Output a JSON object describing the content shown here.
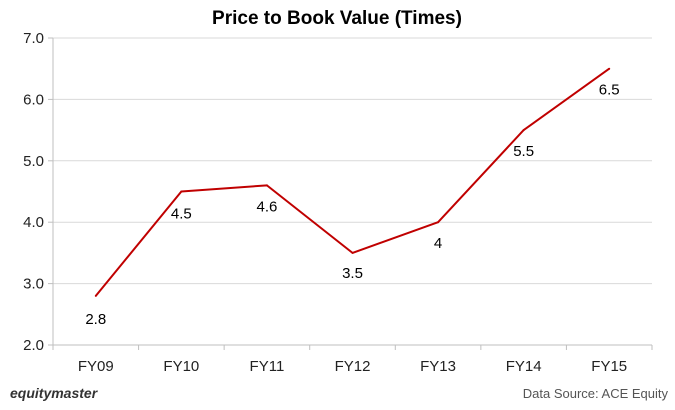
{
  "chart_data": {
    "type": "line",
    "title": "Price to Book Value (Times)",
    "categories": [
      "FY09",
      "FY10",
      "FY11",
      "FY12",
      "FY13",
      "FY14",
      "FY15"
    ],
    "values": [
      2.8,
      4.5,
      4.6,
      3.5,
      4,
      5.5,
      6.5
    ],
    "data_labels": [
      "2.8",
      "4.5",
      "4.6",
      "3.5",
      "4",
      "5.5",
      "6.5"
    ],
    "yticks": [
      "2.0",
      "3.0",
      "4.0",
      "5.0",
      "6.0",
      "7.0"
    ],
    "ylim": [
      2,
      7
    ],
    "grid": true,
    "line_color": "#c00000"
  },
  "footer": {
    "brand": "equitymaster",
    "source": "Data Source: ACE Equity"
  }
}
